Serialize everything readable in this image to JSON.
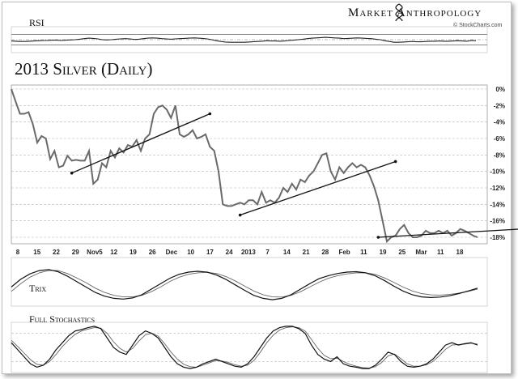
{
  "brand": {
    "name": "Market Anthropology",
    "source": "© StockCharts.com"
  },
  "chart_data": [
    {
      "panel": "rsi",
      "type": "line",
      "title": "RSI",
      "ylim": [
        0,
        100
      ],
      "reference_lines": [
        70,
        50,
        30
      ],
      "series": [
        {
          "values": [
            45,
            44,
            43,
            43,
            44,
            45,
            46,
            47,
            47,
            48,
            48,
            47,
            48,
            49,
            50,
            52,
            54,
            56,
            55,
            53,
            50,
            49,
            50,
            52,
            53,
            54,
            53,
            51,
            52,
            54,
            56,
            57,
            56,
            54,
            53,
            52,
            53,
            54,
            55,
            56,
            57,
            56,
            55,
            53,
            50,
            46,
            43,
            41,
            40,
            40,
            40,
            40,
            41,
            42,
            43,
            44,
            46,
            45,
            45,
            44,
            45,
            47,
            48,
            50,
            52,
            54,
            56,
            57,
            58,
            59,
            58,
            57,
            56,
            54,
            55,
            56,
            57,
            56,
            55,
            54,
            52,
            50,
            46,
            43,
            40,
            40,
            41,
            42,
            43,
            42,
            42,
            43,
            44,
            44,
            45,
            44,
            44,
            45,
            46,
            45,
            44,
            47,
            46
          ]
        }
      ]
    },
    {
      "panel": "price",
      "type": "line",
      "title": "2013 Silver (Daily)",
      "ylabel": "",
      "ylim": [
        -18,
        0
      ],
      "yticks": [
        "0%",
        "-2%",
        "-4%",
        "-6%",
        "-8%",
        "-10%",
        "-12%",
        "-14%",
        "-16%",
        "-18%"
      ],
      "ytick_values": [
        0,
        -2,
        -4,
        -6,
        -8,
        -10,
        -12,
        -14,
        -16,
        -18
      ],
      "xticks": [
        "8",
        "15",
        "22",
        "29",
        "Nov5",
        "12",
        "19",
        "26",
        "Dec",
        "10",
        "17",
        "24",
        "2013",
        "7",
        "14",
        "21",
        "28",
        "Feb",
        "11",
        "19",
        "25",
        "Mar",
        "11",
        "18"
      ],
      "series": [
        {
          "values": [
            0,
            -1.5,
            -3,
            -3,
            -2.8,
            -4.3,
            -6.5,
            -5.7,
            -6,
            -8.5,
            -7.5,
            -9.5,
            -9.3,
            -8.1,
            -8.7,
            -8.6,
            -8.7,
            -8.7,
            -7.5,
            -11.5,
            -11,
            -9,
            -9.5,
            -7.5,
            -8.3,
            -7.2,
            -7.7,
            -6.8,
            -7,
            -6.2,
            -7.5,
            -6,
            -5.5,
            -3,
            -2.2,
            -2,
            -2.5,
            -3.5,
            -2,
            -5.5,
            -5.8,
            -5.5,
            -5,
            -6,
            -5.8,
            -5.5,
            -7,
            -7.5,
            -10,
            -14,
            -14.2,
            -14.2,
            -14,
            -13.8,
            -14,
            -13.5,
            -13.5,
            -14,
            -12.5,
            -13.8,
            -13.5,
            -13.8,
            -13.2,
            -12,
            -12.5,
            -11.5,
            -12.2,
            -11,
            -11.3,
            -10.5,
            -10,
            -9,
            -8,
            -7.8,
            -10,
            -11,
            -9.5,
            -10.2,
            -9.5,
            -9,
            -9.5,
            -9.2,
            -9.5,
            -10.5,
            -11.8,
            -13.5,
            -16,
            -18.5,
            -18,
            -17.8,
            -17,
            -16.5,
            -17.5,
            -18,
            -18,
            -17.8,
            -17.2,
            -17.5,
            -17.5,
            -17.2,
            -17.5,
            -17.2,
            -17.8,
            -17.5,
            -17,
            -17.2,
            -17.5,
            -17.8,
            -18
          ]
        }
      ],
      "trendlines": [
        {
          "from": [
            14,
            -10.2
          ],
          "to": [
            46,
            -3
          ]
        },
        {
          "from": [
            53,
            -15.3
          ],
          "to": [
            89,
            -8.8
          ]
        },
        {
          "from": [
            85,
            -18
          ],
          "to": [
            118,
            -17
          ]
        }
      ]
    },
    {
      "panel": "trix",
      "type": "line",
      "title": "Trix",
      "series": [
        {
          "values": [
            -0.2,
            0.15,
            0.4,
            0.55,
            0.6,
            0.5,
            0.3,
            0.05,
            -0.2,
            -0.45,
            -0.62,
            -0.72,
            -0.75,
            -0.7,
            -0.55,
            -0.3,
            -0.05,
            0.2,
            0.38,
            0.48,
            0.52,
            0.48,
            0.35,
            0.15,
            -0.1,
            -0.35,
            -0.58,
            -0.72,
            -0.78,
            -0.72,
            -0.55,
            -0.3,
            -0.05,
            0.18,
            0.32,
            0.42,
            0.48,
            0.5,
            0.45,
            0.32,
            0.1,
            -0.15,
            -0.38,
            -0.55,
            -0.65,
            -0.68,
            -0.66,
            -0.6,
            -0.5,
            -0.38,
            -0.25
          ]
        },
        {
          "values": [
            -0.4,
            -0.05,
            0.25,
            0.45,
            0.55,
            0.55,
            0.42,
            0.22,
            0,
            -0.25,
            -0.45,
            -0.58,
            -0.65,
            -0.65,
            -0.58,
            -0.42,
            -0.2,
            0.05,
            0.25,
            0.38,
            0.45,
            0.47,
            0.42,
            0.28,
            0.08,
            -0.15,
            -0.38,
            -0.55,
            -0.65,
            -0.66,
            -0.58,
            -0.42,
            -0.2,
            0.02,
            0.2,
            0.32,
            0.4,
            0.45,
            0.45,
            0.38,
            0.22,
            0.02,
            -0.2,
            -0.38,
            -0.5,
            -0.56,
            -0.57,
            -0.54,
            -0.48,
            -0.4,
            -0.3
          ]
        }
      ]
    },
    {
      "panel": "stochastics",
      "type": "line",
      "title": "Full Stochastics",
      "ylim": [
        0,
        100
      ],
      "series": [
        {
          "values": [
            60,
            45,
            30,
            15,
            8,
            12,
            25,
            45,
            60,
            75,
            85,
            88,
            92,
            95,
            90,
            70,
            50,
            40,
            35,
            55,
            75,
            85,
            80,
            70,
            50,
            30,
            15,
            8,
            5,
            8,
            15,
            20,
            25,
            20,
            15,
            10,
            8,
            15,
            30,
            50,
            70,
            85,
            92,
            95,
            95,
            90,
            80,
            55,
            35,
            25,
            20,
            30,
            15,
            10,
            8,
            5,
            5,
            12,
            25,
            40,
            35,
            20,
            10,
            8,
            10,
            15,
            25,
            40,
            55,
            60,
            55,
            58,
            60,
            55
          ]
        },
        {
          "values": [
            65,
            52,
            38,
            24,
            14,
            12,
            20,
            35,
            52,
            66,
            78,
            85,
            89,
            92,
            91,
            80,
            62,
            48,
            40,
            48,
            64,
            77,
            80,
            74,
            58,
            40,
            25,
            14,
            9,
            8,
            12,
            17,
            22,
            21,
            18,
            13,
            10,
            12,
            22,
            40,
            60,
            76,
            87,
            92,
            94,
            92,
            85,
            67,
            48,
            33,
            26,
            27,
            20,
            14,
            10,
            7,
            6,
            9,
            18,
            32,
            36,
            26,
            15,
            10,
            10,
            13,
            20,
            32,
            46,
            55,
            56,
            57,
            59,
            57
          ]
        }
      ]
    }
  ]
}
